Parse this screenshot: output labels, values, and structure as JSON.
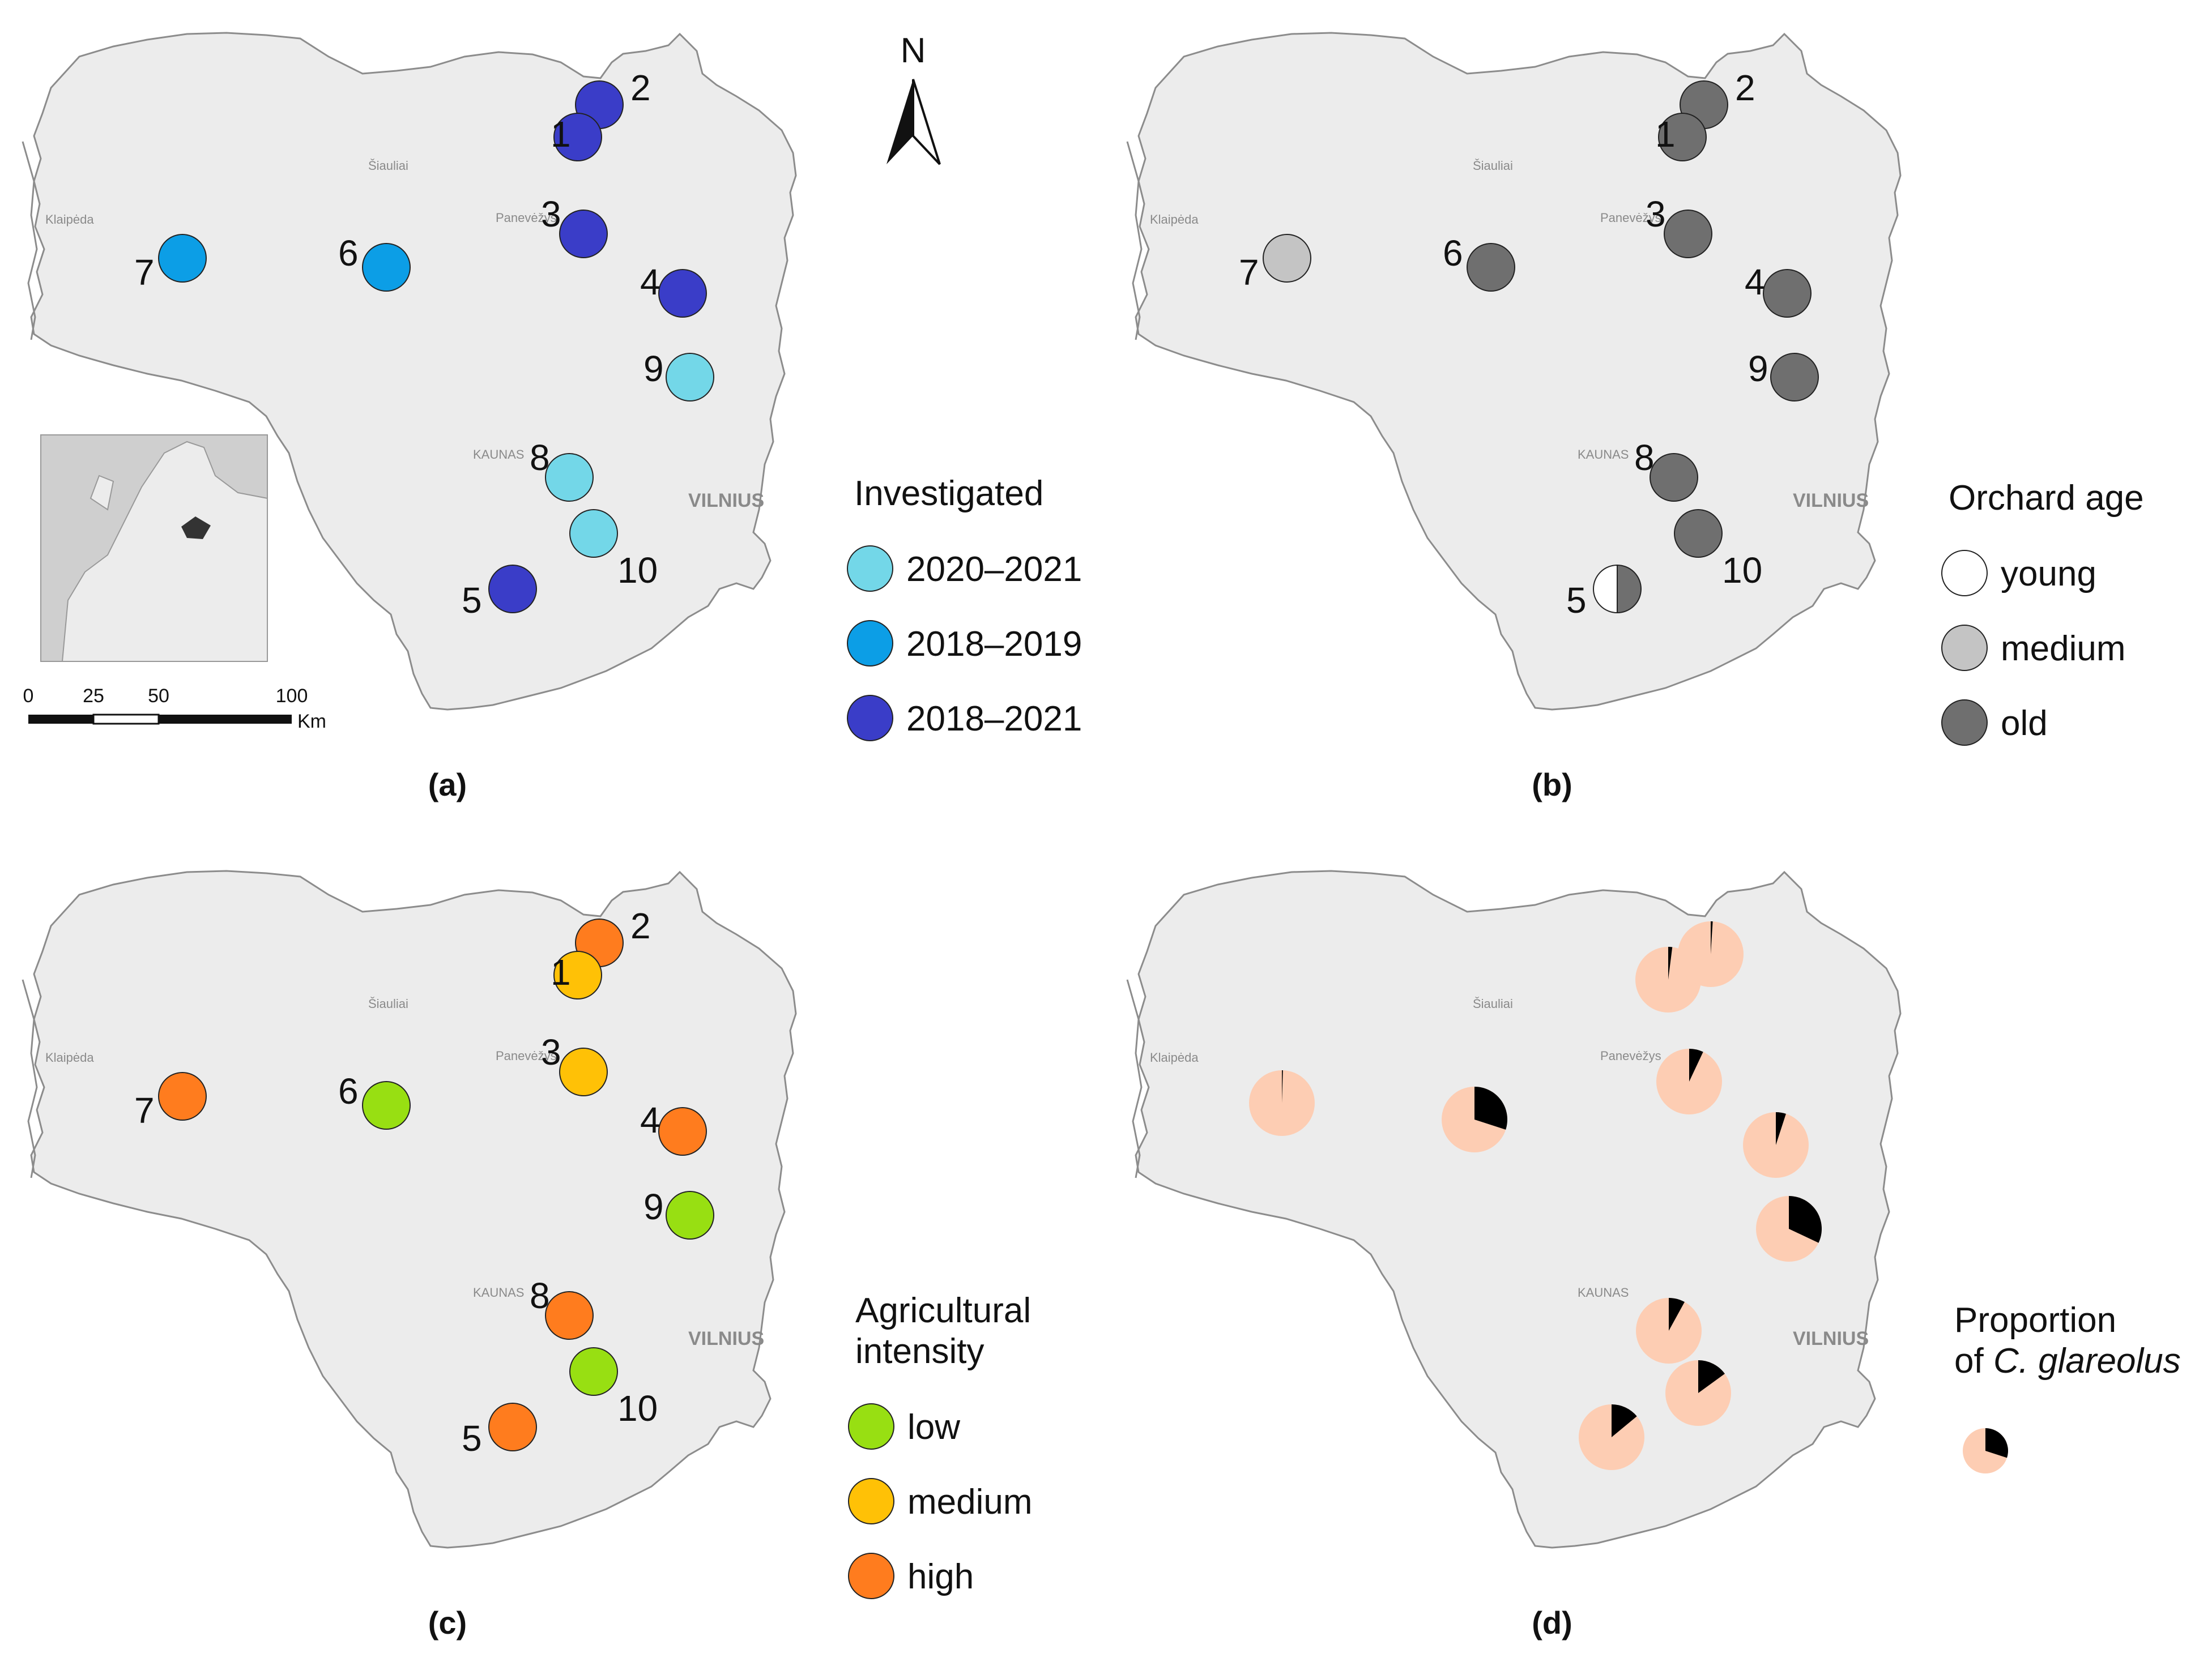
{
  "north_label": "N",
  "cities": {
    "siauliai": "Šiauliai",
    "klaipeda": "Klaipėda",
    "panevezys": "Panevėžys",
    "kaunas": "KAUNAS",
    "vilnius": "VILNIUS"
  },
  "scale_bar": {
    "labels": [
      "0",
      "25",
      "50",
      "100"
    ],
    "unit": "Km"
  },
  "colors": {
    "land": "#ececec",
    "border": "#8c8c8c",
    "investigated": {
      "2020_2021": "#73d7e8",
      "2018_2019": "#0c9ee6",
      "2018_2021": "#3a3dc8"
    },
    "orchard_age": {
      "young": "#ffffff",
      "medium": "#c4c4c4",
      "old": "#6f6f6f"
    },
    "agricultural_intensity": {
      "low": "#98df12",
      "medium": "#ffc106",
      "high": "#ff7c1e"
    },
    "pie": {
      "base": "#fdcdb3",
      "c_glareolus": "#000000"
    }
  },
  "sites": [
    {
      "id": "1",
      "investigated": "2018–2021",
      "orchard_age": "old",
      "agricultural_intensity": "medium",
      "c_glareolus_proportion": 0.02
    },
    {
      "id": "2",
      "investigated": "2018–2021",
      "orchard_age": "old",
      "agricultural_intensity": "high",
      "c_glareolus_proportion": 0.01
    },
    {
      "id": "3",
      "investigated": "2018–2021",
      "orchard_age": "old",
      "agricultural_intensity": "medium",
      "c_glareolus_proportion": 0.07
    },
    {
      "id": "4",
      "investigated": "2018–2021",
      "orchard_age": "old",
      "agricultural_intensity": "high",
      "c_glareolus_proportion": 0.05
    },
    {
      "id": "5",
      "investigated": "2018–2021",
      "orchard_age": "young/old",
      "agricultural_intensity": "high",
      "c_glareolus_proportion": 0.14
    },
    {
      "id": "6",
      "investigated": "2018–2019",
      "orchard_age": "old",
      "agricultural_intensity": "low",
      "c_glareolus_proportion": 0.3
    },
    {
      "id": "7",
      "investigated": "2018–2019",
      "orchard_age": "medium",
      "agricultural_intensity": "high",
      "c_glareolus_proportion": 0.005
    },
    {
      "id": "8",
      "investigated": "2020–2021",
      "orchard_age": "old",
      "agricultural_intensity": "high",
      "c_glareolus_proportion": 0.08
    },
    {
      "id": "9",
      "investigated": "2020–2021",
      "orchard_age": "old",
      "agricultural_intensity": "low",
      "c_glareolus_proportion": 0.32
    },
    {
      "id": "10",
      "investigated": "2020–2021",
      "orchard_age": "old",
      "agricultural_intensity": "low",
      "c_glareolus_proportion": 0.15
    }
  ],
  "panels": [
    {
      "label": "(a)",
      "legend_title_lines": [
        "Investigated"
      ],
      "legend_items": [
        {
          "label": "2020–2021",
          "color": "#73d7e8"
        },
        {
          "label": "2018–2019",
          "color": "#0c9ee6"
        },
        {
          "label": "2018–2021",
          "color": "#3a3dc8"
        }
      ]
    },
    {
      "label": "(b)",
      "legend_title_lines": [
        "Orchard age"
      ],
      "legend_items": [
        {
          "label": "young",
          "color": "#ffffff"
        },
        {
          "label": "medium",
          "color": "#c4c4c4"
        },
        {
          "label": "old",
          "color": "#6f6f6f"
        }
      ]
    },
    {
      "label": "(c)",
      "legend_title_lines": [
        "Agricultural",
        "intensity"
      ],
      "legend_items": [
        {
          "label": "low",
          "color": "#98df12"
        },
        {
          "label": "medium",
          "color": "#ffc106"
        },
        {
          "label": "high",
          "color": "#ff7c1e"
        }
      ]
    },
    {
      "label": "(d)",
      "legend_title_lines": [
        "Proportion",
        "of C. glareolus"
      ],
      "legend_items": []
    }
  ]
}
